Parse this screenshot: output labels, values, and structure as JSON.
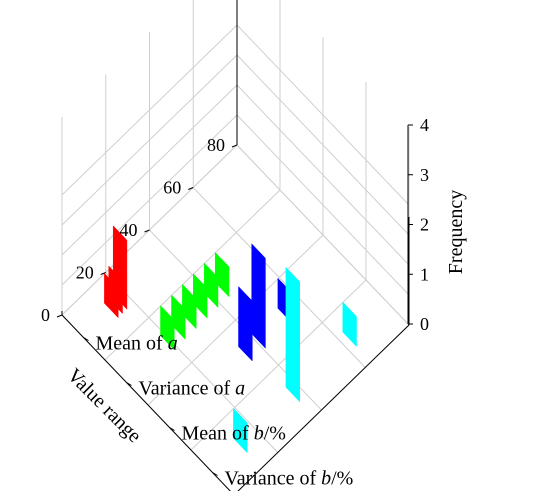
{
  "chart_data": {
    "type": "bar3d",
    "x_axis": {
      "label": "Value range",
      "ticks": [
        0,
        20,
        40,
        60,
        80
      ],
      "range": [
        0,
        80
      ]
    },
    "y_axis": {
      "categories": [
        {
          "prefix": "Mean of ",
          "var": "a",
          "suffix": ""
        },
        {
          "prefix": "Variance of ",
          "var": "a",
          "suffix": ""
        },
        {
          "prefix": "Mean of ",
          "var": "b",
          "suffix": "/%"
        },
        {
          "prefix": "Variance of ",
          "var": "b",
          "suffix": "/%"
        }
      ]
    },
    "z_axis": {
      "label": "Frequency",
      "ticks": [
        0,
        1,
        2,
        3,
        4
      ],
      "range": [
        0,
        4
      ]
    },
    "grid": true,
    "series": [
      {
        "category_index": 0,
        "color": "#ff0000",
        "bars": [
          {
            "x": 18,
            "value": 2.3
          },
          {
            "x": 16,
            "value": 1.1
          },
          {
            "x": 14,
            "value": 1
          }
        ]
      },
      {
        "category_index": 1,
        "color": "#00ff00",
        "bars": [
          {
            "x": 45,
            "value": 1
          },
          {
            "x": 40,
            "value": 1
          },
          {
            "x": 35,
            "value": 1
          },
          {
            "x": 30,
            "value": 1
          },
          {
            "x": 25,
            "value": 1
          },
          {
            "x": 20,
            "value": 1
          }
        ]
      },
      {
        "category_index": 2,
        "color": "#0000ff",
        "bars": [
          {
            "x": 54,
            "value": 1
          },
          {
            "x": 42,
            "value": 3
          },
          {
            "x": 36,
            "value": 2
          }
        ]
      },
      {
        "category_index": 3,
        "color": "#00ffff",
        "bars": [
          {
            "x": 64,
            "value": 1
          },
          {
            "x": 38,
            "value": 4
          },
          {
            "x": 14,
            "value": 1
          }
        ]
      }
    ]
  }
}
